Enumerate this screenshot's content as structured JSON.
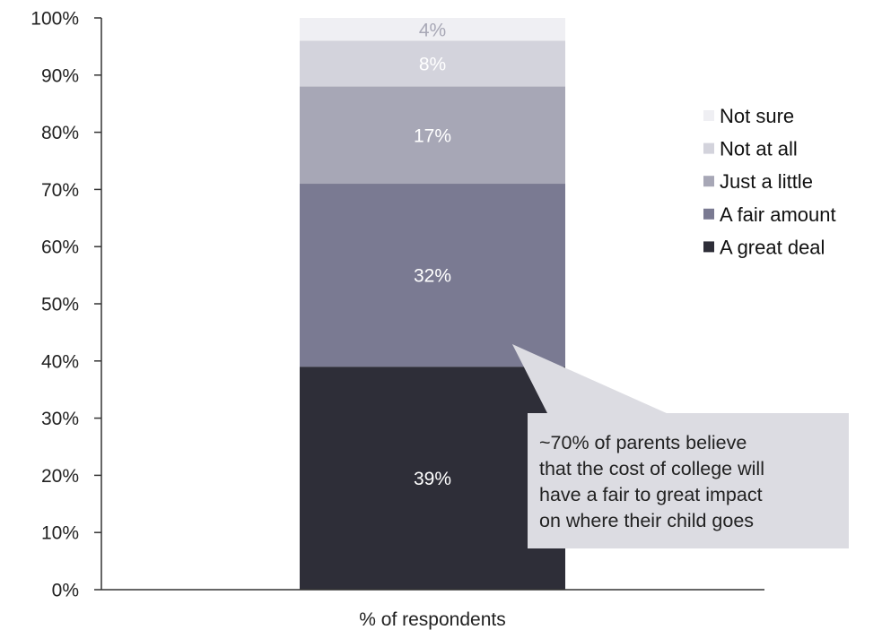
{
  "chart_data": {
    "type": "bar",
    "stacked": true,
    "categories": [
      "% of respondents"
    ],
    "series": [
      {
        "name": "A great deal",
        "values": [
          39
        ],
        "label": "39%",
        "color": "#2e2e38",
        "label_color": "#ffffff"
      },
      {
        "name": "A fair amount",
        "values": [
          32
        ],
        "label": "32%",
        "color": "#7a7a92",
        "label_color": "#ffffff"
      },
      {
        "name": "Just a little",
        "values": [
          17
        ],
        "label": "17%",
        "color": "#a7a7b6",
        "label_color": "#ffffff"
      },
      {
        "name": "Not at all",
        "values": [
          8
        ],
        "label": "8%",
        "color": "#d3d3dc",
        "label_color": "#ffffff"
      },
      {
        "name": "Not sure",
        "values": [
          4
        ],
        "label": "4%",
        "color": "#efeff3",
        "label_color": "#a8a8b6"
      }
    ],
    "legend_order": [
      "Not sure",
      "Not at all",
      "Just a little",
      "A fair amount",
      "A great deal"
    ],
    "legend_position": "right",
    "ylim": [
      0,
      100
    ],
    "yticks": [
      "0%",
      "10%",
      "20%",
      "30%",
      "40%",
      "50%",
      "60%",
      "70%",
      "80%",
      "90%",
      "100%"
    ],
    "grid": false,
    "xlabel": "",
    "ylabel": "",
    "title": "",
    "annotation": {
      "lines": [
        "~70% of parents believe",
        "that the cost of college will",
        "have a fair to great impact",
        "on where their child goes"
      ],
      "color": "#dcdce2",
      "points_to": "A fair amount"
    }
  }
}
